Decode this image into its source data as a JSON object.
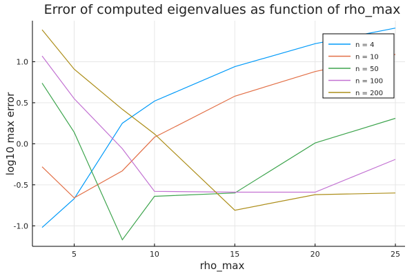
{
  "chart_data": {
    "type": "line",
    "title": "Error of computed eigenvalues as function of rho_max",
    "xlabel": "rho_max",
    "ylabel": "log10 max error",
    "x": [
      3,
      5,
      8,
      10,
      15,
      20,
      25
    ],
    "xlim": [
      2.4,
      25.6
    ],
    "ylim": [
      -1.25,
      1.5
    ],
    "xticks": [
      5,
      10,
      15,
      20,
      25
    ],
    "yticks": [
      -1.0,
      -0.5,
      0.0,
      0.5,
      1.0
    ],
    "ytick_labels": [
      "-1.0",
      "-0.5",
      "0.0",
      "0.5",
      "1.0"
    ],
    "grid": true,
    "legend_position": "top-right",
    "series": [
      {
        "name": "n = 4",
        "color": "#009AF9",
        "values": [
          -1.02,
          -0.67,
          0.25,
          0.52,
          0.94,
          1.22,
          1.41
        ]
      },
      {
        "name": "n = 10",
        "color": "#E26F46",
        "values": [
          -0.28,
          -0.66,
          -0.33,
          0.08,
          0.58,
          0.88,
          1.09
        ]
      },
      {
        "name": "n = 50",
        "color": "#3DA44D",
        "values": [
          0.74,
          0.14,
          -1.17,
          -0.64,
          -0.6,
          0.01,
          0.31
        ]
      },
      {
        "name": "n = 100",
        "color": "#C271D2",
        "values": [
          1.07,
          0.55,
          -0.06,
          -0.58,
          -0.59,
          -0.59,
          -0.19
        ]
      },
      {
        "name": "n = 200",
        "color": "#AC8D18",
        "values": [
          1.39,
          0.91,
          0.42,
          0.12,
          -0.81,
          -0.62,
          -0.6
        ]
      }
    ]
  }
}
